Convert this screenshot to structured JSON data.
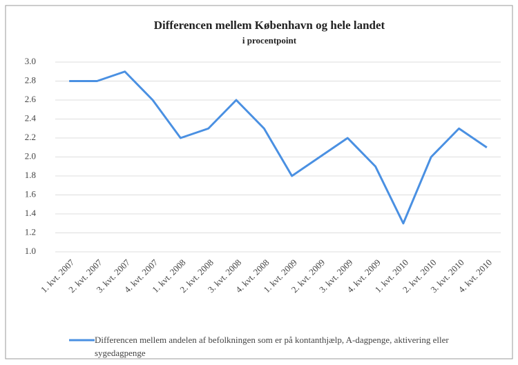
{
  "chart_data": {
    "type": "line",
    "title": "Differencen mellem København og hele landet",
    "subtitle": "i procentpoint",
    "categories": [
      "1. kvt. 2007",
      "2. kvt. 2007",
      "3. kvt. 2007",
      "4. kvt. 2007",
      "1. kvt. 2008",
      "2. kvt. 2008",
      "3. kvt. 2008",
      "4. kvt. 2008",
      "1. kvt. 2009",
      "2. kvt. 2009",
      "3. kvt. 2009",
      "4. kvt. 2009",
      "1. kvt. 2010",
      "2. kvt. 2010",
      "3. kvt. 2010",
      "4. kvt. 2010"
    ],
    "series": [
      {
        "name": "Differencen mellem andelen af befolkningen som er på kontanthjælp, A-dagpenge, aktivering eller sygedagpenge",
        "color": "#4a90e2",
        "values": [
          2.8,
          2.8,
          2.9,
          2.6,
          2.2,
          2.3,
          2.6,
          2.3,
          1.8,
          2.0,
          2.2,
          1.9,
          1.3,
          2.0,
          2.3,
          2.1
        ]
      }
    ],
    "ylim": [
      1.0,
      3.0
    ],
    "yticks": [
      {
        "value": 1,
        "label": "1.0"
      },
      1.2,
      1.4,
      1.6,
      1.8,
      {
        "value": 2,
        "label": "2.0"
      },
      2.2,
      2.4,
      2.6,
      2.8,
      {
        "value": 3,
        "label": "3.0"
      }
    ],
    "grid": true,
    "legend": "bottom"
  }
}
